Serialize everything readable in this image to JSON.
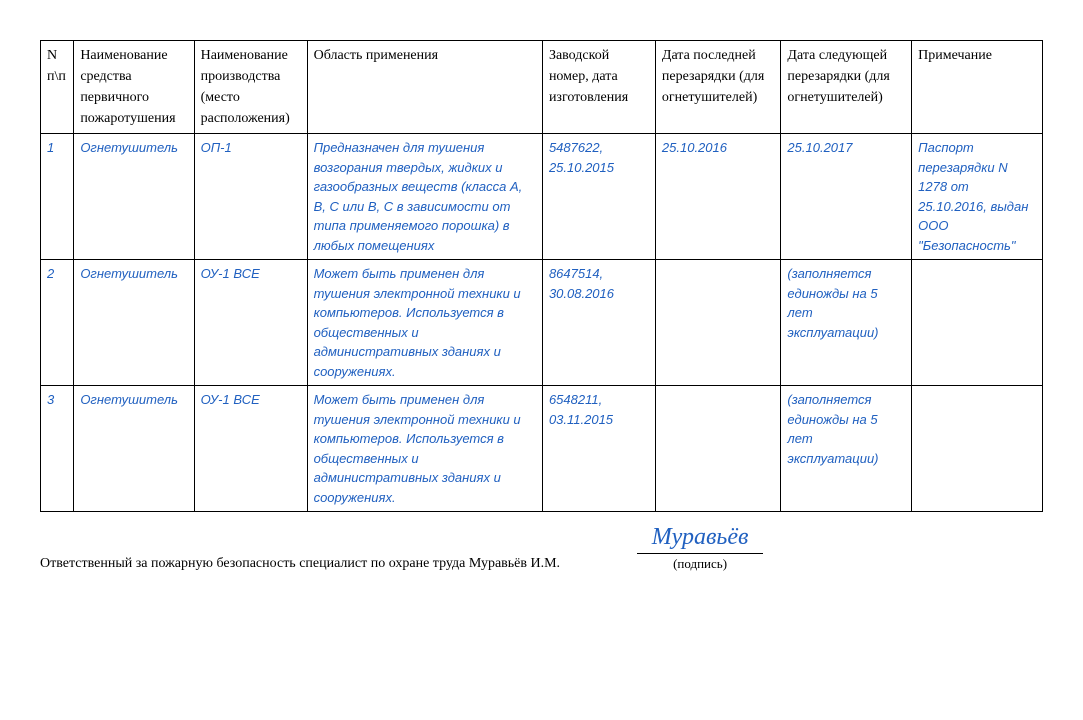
{
  "table": {
    "headers": {
      "num": "N п\\п",
      "name": "Наименование средства первичного пожаротушения",
      "type": "Наименование производства (место расположения)",
      "area": "Область применения",
      "serial": "Заводской номер, дата изготовления",
      "lastRecharge": "Дата последней перезарядки (для огнетушителей)",
      "nextRecharge": "Дата следующей перезарядки (для огнетушителей)",
      "note": "Примечание"
    },
    "rows": [
      {
        "num": "1",
        "name": "Огнетушитель",
        "type": "ОП-1",
        "area": "Предназначен для тушения возгорания твердых, жидких и газообразных веществ (класса A, B, C или B, C в зависимости от типа применяемого порошка) в любых помещениях",
        "serial": "5487622, 25.10.2015",
        "lastRecharge": "25.10.2016",
        "nextRecharge": "25.10.2017",
        "note": "Паспорт перезарядки N 1278 от 25.10.2016, выдан ООО \"Безопасность\""
      },
      {
        "num": "2",
        "name": "Огнетушитель",
        "type": "ОУ-1 ВСЕ",
        "area": "Может быть применен для тушения электронной техники и компьютеров. Используется в общественных и административных зданиях и сооружениях.",
        "serial": "8647514, 30.08.2016",
        "lastRecharge": "",
        "nextRecharge": "(заполняется единожды на 5 лет эксплуатации)",
        "note": ""
      },
      {
        "num": "3",
        "name": "Огнетушитель",
        "type": "ОУ-1 ВСЕ",
        "area": "Может быть применен для тушения электронной техники и компьютеров. Используется в общественных и административных зданиях и сооружениях.",
        "serial": "6548211, 03.11.2015",
        "lastRecharge": "",
        "nextRecharge": "(заполняется единожды на 5 лет эксплуатации)",
        "note": ""
      }
    ]
  },
  "footer": {
    "responsible": "Ответственный за пожарную безопасность специалист по охране труда Муравьёв И.М.",
    "signature": "Муравьёв",
    "signatureCaption": "(подпись)"
  },
  "colors": {
    "headerText": "#000000",
    "dataText": "#2060c0",
    "border": "#000000",
    "background": "#ffffff"
  }
}
